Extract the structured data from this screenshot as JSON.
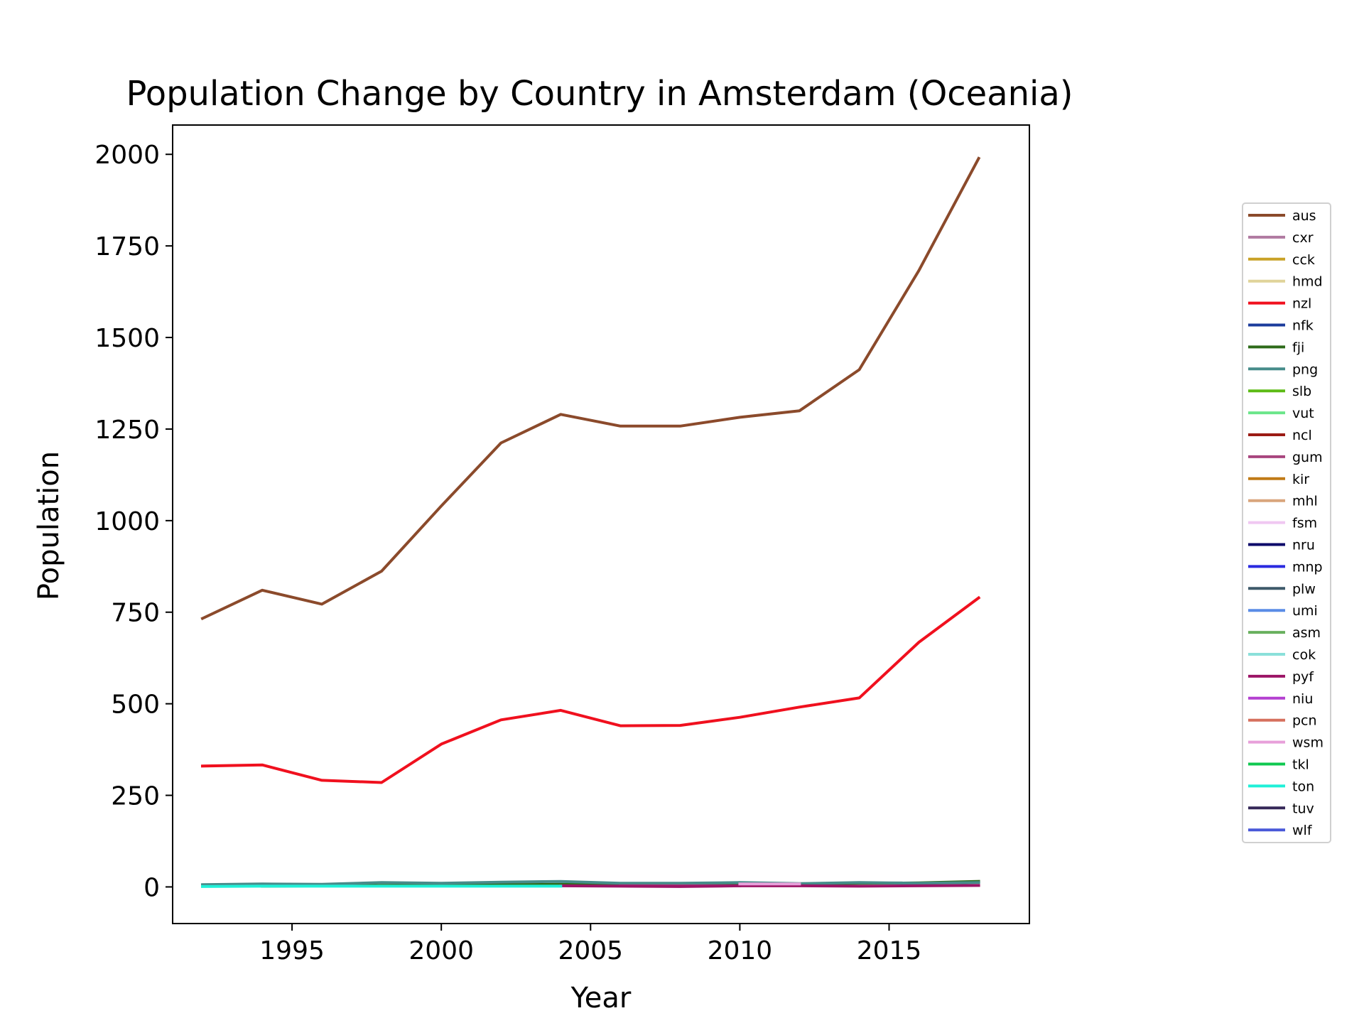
{
  "chart_data": {
    "type": "line",
    "title": "Population Change by Country in Amsterdam (Oceania)",
    "xlabel": "Year",
    "ylabel": "Population",
    "xlim": [
      1991.0,
      2019.7
    ],
    "ylim": [
      -100,
      2080
    ],
    "xticks": [
      1995,
      2000,
      2005,
      2010,
      2015
    ],
    "yticks": [
      0,
      250,
      500,
      750,
      1000,
      1250,
      1500,
      1750,
      2000
    ],
    "grid": false,
    "legend_position": "right",
    "x": [
      1992,
      1994,
      1996,
      1998,
      2000,
      2002,
      2004,
      2006,
      2008,
      2010,
      2012,
      2014,
      2016,
      2018
    ],
    "series": [
      {
        "name": "aus",
        "color": "#8B4A2B",
        "values": [
          733,
          810,
          772,
          862,
          1040,
          1212,
          1290,
          1258,
          1258,
          1282,
          1300,
          1412,
          1683,
          1989
        ]
      },
      {
        "name": "cxr",
        "color": "#B07AA1",
        "values": [
          null,
          null,
          null,
          null,
          null,
          null,
          null,
          null,
          null,
          null,
          null,
          null,
          null,
          null
        ]
      },
      {
        "name": "cck",
        "color": "#C9A227",
        "values": [
          null,
          null,
          null,
          null,
          null,
          null,
          null,
          null,
          null,
          null,
          null,
          null,
          null,
          null
        ]
      },
      {
        "name": "hmd",
        "color": "#E0D49A",
        "values": [
          null,
          null,
          null,
          null,
          null,
          null,
          null,
          null,
          null,
          null,
          null,
          null,
          null,
          null
        ]
      },
      {
        "name": "nzl",
        "color": "#F0101E",
        "values": [
          330,
          333,
          291,
          285,
          390,
          456,
          482,
          440,
          441,
          463,
          491,
          516,
          668,
          789
        ]
      },
      {
        "name": "nfk",
        "color": "#1C3C9C",
        "values": [
          null,
          null,
          null,
          null,
          null,
          null,
          null,
          null,
          null,
          null,
          null,
          null,
          null,
          null
        ]
      },
      {
        "name": "fji",
        "color": "#2E6B1A",
        "values": [
          null,
          2,
          3,
          4,
          5,
          6,
          7,
          8,
          7,
          9,
          8,
          10,
          11,
          15
        ]
      },
      {
        "name": "png",
        "color": "#468C8A",
        "values": [
          6,
          8,
          7,
          12,
          10,
          13,
          15,
          10,
          10,
          12,
          9,
          12,
          10,
          12
        ]
      },
      {
        "name": "slb",
        "color": "#5DBB16",
        "values": [
          null,
          null,
          null,
          null,
          null,
          null,
          null,
          null,
          null,
          null,
          null,
          null,
          null,
          null
        ]
      },
      {
        "name": "vut",
        "color": "#6BE68A",
        "values": [
          null,
          null,
          null,
          null,
          null,
          null,
          null,
          null,
          null,
          null,
          null,
          null,
          null,
          null
        ]
      },
      {
        "name": "ncl",
        "color": "#9B1B14",
        "values": [
          null,
          null,
          null,
          null,
          null,
          null,
          null,
          null,
          null,
          null,
          null,
          null,
          null,
          null
        ]
      },
      {
        "name": "gum",
        "color": "#A8457E",
        "values": [
          null,
          null,
          null,
          null,
          null,
          null,
          null,
          3,
          3,
          3,
          null,
          null,
          null,
          null
        ]
      },
      {
        "name": "kir",
        "color": "#C07A16",
        "values": [
          null,
          null,
          null,
          null,
          null,
          null,
          null,
          null,
          null,
          null,
          null,
          null,
          null,
          null
        ]
      },
      {
        "name": "mhl",
        "color": "#D9A57C",
        "values": [
          null,
          null,
          null,
          null,
          null,
          null,
          null,
          null,
          null,
          null,
          null,
          null,
          null,
          null
        ]
      },
      {
        "name": "fsm",
        "color": "#F0C8F2",
        "values": [
          null,
          null,
          null,
          null,
          null,
          null,
          null,
          null,
          null,
          null,
          null,
          null,
          null,
          null
        ]
      },
      {
        "name": "nru",
        "color": "#0E0A6A",
        "values": [
          null,
          null,
          null,
          null,
          null,
          null,
          null,
          null,
          null,
          null,
          null,
          null,
          null,
          null
        ]
      },
      {
        "name": "mnp",
        "color": "#2A2AE0",
        "values": [
          null,
          null,
          null,
          null,
          null,
          null,
          null,
          null,
          null,
          null,
          null,
          null,
          null,
          null
        ]
      },
      {
        "name": "plw",
        "color": "#3E5A6A",
        "values": [
          null,
          null,
          null,
          null,
          null,
          null,
          null,
          null,
          null,
          null,
          null,
          null,
          null,
          null
        ]
      },
      {
        "name": "umi",
        "color": "#5A8CE6",
        "values": [
          null,
          null,
          null,
          null,
          null,
          null,
          null,
          null,
          null,
          null,
          null,
          null,
          null,
          null
        ]
      },
      {
        "name": "asm",
        "color": "#68B05E",
        "values": [
          null,
          null,
          null,
          null,
          null,
          null,
          null,
          null,
          null,
          null,
          null,
          null,
          null,
          null
        ]
      },
      {
        "name": "cok",
        "color": "#8AE0DA",
        "values": [
          null,
          null,
          null,
          null,
          null,
          null,
          null,
          null,
          null,
          null,
          null,
          null,
          null,
          null
        ]
      },
      {
        "name": "pyf",
        "color": "#9C1466",
        "values": [
          null,
          null,
          null,
          null,
          null,
          null,
          3,
          2,
          1,
          3,
          3,
          2,
          3,
          4
        ]
      },
      {
        "name": "niu",
        "color": "#B440D0",
        "values": [
          null,
          null,
          null,
          null,
          null,
          null,
          null,
          null,
          null,
          null,
          null,
          null,
          null,
          null
        ]
      },
      {
        "name": "pcn",
        "color": "#D6705E",
        "values": [
          null,
          null,
          null,
          null,
          null,
          null,
          null,
          null,
          null,
          null,
          null,
          null,
          null,
          null
        ]
      },
      {
        "name": "wsm",
        "color": "#E8A0DA",
        "values": [
          null,
          null,
          null,
          null,
          null,
          null,
          null,
          null,
          null,
          8,
          8,
          null,
          null,
          null
        ]
      },
      {
        "name": "tkl",
        "color": "#10C850",
        "values": [
          null,
          null,
          null,
          null,
          null,
          null,
          null,
          null,
          null,
          null,
          null,
          null,
          null,
          null
        ]
      },
      {
        "name": "ton",
        "color": "#20F0D8",
        "values": [
          1,
          2,
          2,
          2,
          2,
          2,
          2,
          null,
          null,
          null,
          null,
          null,
          null,
          null
        ]
      },
      {
        "name": "tuv",
        "color": "#352858",
        "values": [
          null,
          null,
          null,
          null,
          null,
          null,
          null,
          null,
          null,
          null,
          null,
          null,
          null,
          null
        ]
      },
      {
        "name": "wlf",
        "color": "#4858D8",
        "values": [
          null,
          null,
          null,
          null,
          null,
          null,
          null,
          null,
          null,
          null,
          null,
          null,
          null,
          null
        ]
      }
    ]
  }
}
